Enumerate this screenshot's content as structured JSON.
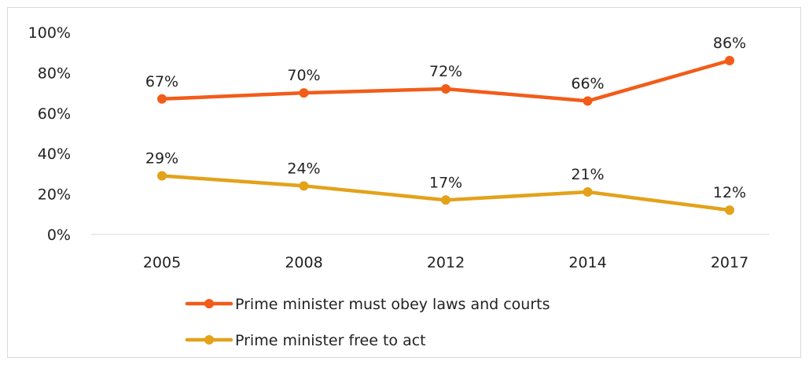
{
  "chart_data": {
    "type": "line",
    "title": "",
    "xlabel": "",
    "ylabel": "",
    "categories": [
      "2005",
      "2008",
      "2012",
      "2014",
      "2017"
    ],
    "ylim": [
      0,
      100
    ],
    "yticks": [
      0,
      20,
      40,
      60,
      80,
      100
    ],
    "ytick_labels": [
      "0%",
      "20%",
      "40%",
      "60%",
      "80%",
      "100%"
    ],
    "grid": false,
    "legend_position": "bottom",
    "series": [
      {
        "name": "Prime minister must obey laws and courts",
        "values": [
          67,
          70,
          72,
          66,
          86
        ],
        "labels": [
          "67%",
          "70%",
          "72%",
          "66%",
          "86%"
        ],
        "color": "#F25C19"
      },
      {
        "name": "Prime minister free to act",
        "values": [
          29,
          24,
          17,
          21,
          12
        ],
        "labels": [
          "29%",
          "24%",
          "17%",
          "21%",
          "12%"
        ],
        "color": "#E3A21A"
      }
    ]
  }
}
